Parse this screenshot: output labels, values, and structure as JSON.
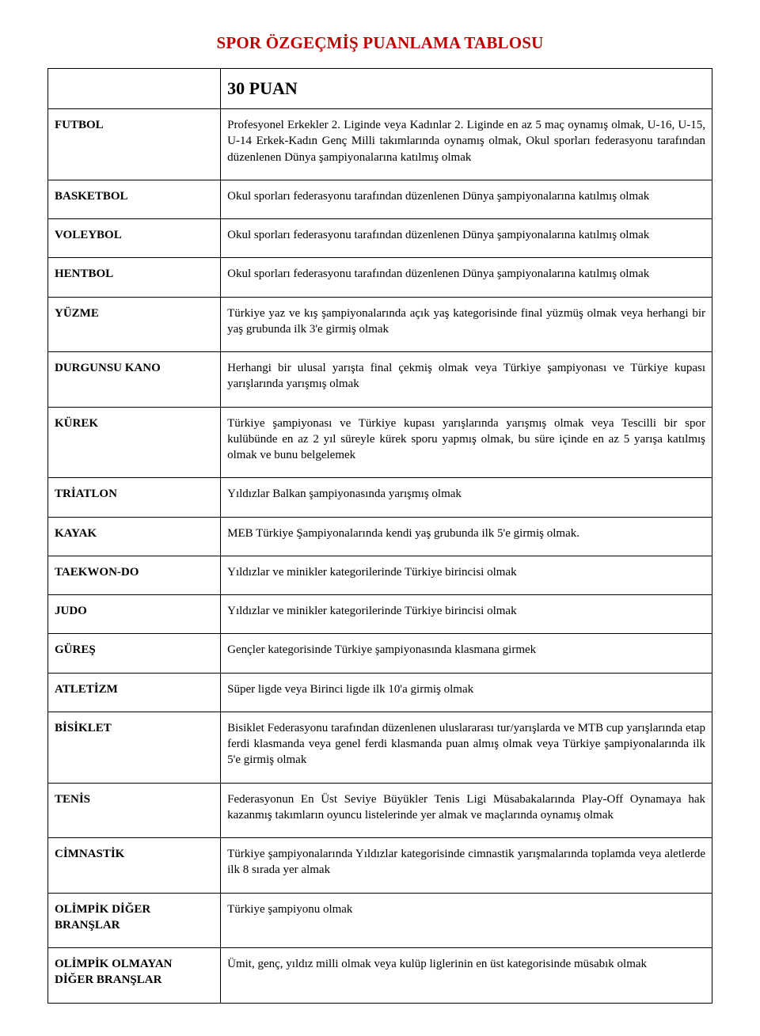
{
  "title": "SPOR ÖZGEÇMİŞ PUANLAMA TABLOSU",
  "title_color": "#c00000",
  "points_header": "30 PUAN",
  "rows": [
    {
      "label": "FUTBOL",
      "desc": "Profesyonel Erkekler 2. Liginde veya Kadınlar 2. Liginde en az 5 maç oynamış olmak, U-16, U-15, U-14 Erkek-Kadın Genç Milli takımlarında oynamış olmak, Okul sporları federasyonu tarafından düzenlenen Dünya şampiyonalarına katılmış olmak"
    },
    {
      "label": "BASKETBOL",
      "desc": "Okul sporları federasyonu tarafından düzenlenen Dünya şampiyonalarına katılmış olmak"
    },
    {
      "label": "VOLEYBOL",
      "desc": "Okul sporları federasyonu tarafından düzenlenen Dünya şampiyonalarına katılmış olmak"
    },
    {
      "label": "HENTBOL",
      "desc": "Okul sporları federasyonu tarafından düzenlenen Dünya şampiyonalarına katılmış olmak"
    },
    {
      "label": "YÜZME",
      "desc": "Türkiye yaz ve kış şampiyonalarında açık yaş kategorisinde final yüzmüş olmak veya herhangi bir yaş grubunda ilk 3'e girmiş olmak"
    },
    {
      "label": "DURGUNSU KANO",
      "desc": "Herhangi bir ulusal yarışta final çekmiş olmak veya Türkiye şampiyonası ve Türkiye kupası yarışlarında yarışmış olmak"
    },
    {
      "label": "KÜREK",
      "desc": "Türkiye şampiyonası ve Türkiye kupası yarışlarında yarışmış olmak veya Tescilli bir spor kulübünde en az 2 yıl süreyle kürek sporu yapmış olmak, bu süre içinde en az 5 yarışa katılmış olmak ve bunu belgelemek"
    },
    {
      "label": "TRİATLON",
      "desc": "Yıldızlar Balkan şampiyonasında yarışmış olmak"
    },
    {
      "label": "KAYAK",
      "desc": "MEB Türkiye Şampiyonalarında kendi yaş grubunda ilk 5'e girmiş olmak."
    },
    {
      "label": "TAEKWON-DO",
      "desc": "Yıldızlar ve minikler kategorilerinde Türkiye birincisi olmak"
    },
    {
      "label": "JUDO",
      "desc": "Yıldızlar ve minikler kategorilerinde Türkiye birincisi olmak"
    },
    {
      "label": "GÜREŞ",
      "desc": "Gençler kategorisinde Türkiye şampiyonasında klasmana girmek"
    },
    {
      "label": "ATLETİZM",
      "desc": "Süper ligde veya Birinci ligde ilk 10'a girmiş olmak"
    },
    {
      "label": "BİSİKLET",
      "desc": "Bisiklet Federasyonu tarafından düzenlenen uluslararası tur/yarışlarda ve MTB cup yarışlarında etap ferdi klasmanda veya genel ferdi klasmanda puan almış olmak veya Türkiye şampiyonalarında ilk 5'e girmiş olmak"
    },
    {
      "label": "TENİS",
      "desc": "Federasyonun En Üst Seviye Büyükler Tenis Ligi Müsabakalarında Play-Off Oynamaya hak kazanmış takımların oyuncu listelerinde yer almak ve maçlarında oynamış olmak"
    },
    {
      "label": "CİMNASTİK",
      "desc": "Türkiye şampiyonalarında Yıldızlar kategorisinde cimnastik yarışmalarında toplamda veya aletlerde ilk 8 sırada yer almak"
    },
    {
      "label": "OLİMPİK DİĞER BRANŞLAR",
      "desc": "Türkiye şampiyonu olmak"
    },
    {
      "label": "OLİMPİK OLMAYAN DİĞER BRANŞLAR",
      "desc": "Ümit, genç, yıldız milli olmak veya kulüp liglerinin en üst kategorisinde müsabık olmak"
    }
  ]
}
